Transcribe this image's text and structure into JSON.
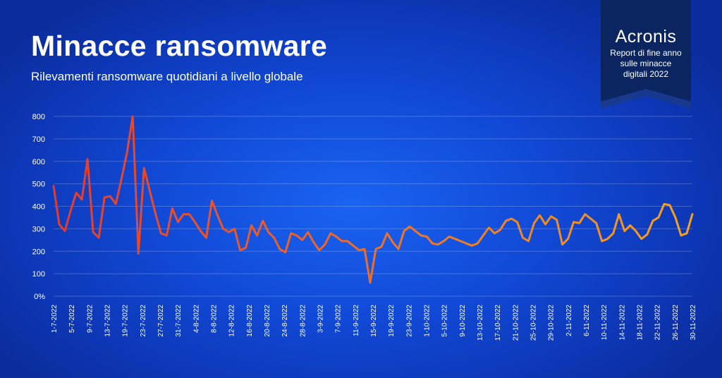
{
  "header": {
    "title": "Minacce ransomware",
    "subtitle": "Rilevamenti ransomware quotidiani a livello globale"
  },
  "badge": {
    "brand": "Acronis",
    "report_line1": "Report di fine anno",
    "report_line2": "sulle minacce",
    "report_line3": "digitali 2022"
  },
  "colors": {
    "background": "#1149d6",
    "line_start": "#e83a2a",
    "line_end": "#f7a21d",
    "badge": "#0b2560"
  },
  "chart_data": {
    "type": "line",
    "title": "Minacce ransomware",
    "subtitle": "Rilevamenti ransomware quotidiani a livello globale",
    "xlabel": "",
    "ylabel": "",
    "ylim": [
      0,
      800
    ],
    "yticks": [
      "0%",
      "100",
      "200",
      "300",
      "400",
      "500",
      "600",
      "700",
      "800"
    ],
    "grid": true,
    "legend": "none",
    "xtick_labels": [
      "1-7-2022",
      "5-7-2022",
      "9-7-2022",
      "13-7-2022",
      "19-7-2022",
      "23-7-2022",
      "27-7-2022",
      "31-7-2022",
      "4-8-2022",
      "8-8-2022",
      "12-8-2022",
      "16-8-2022",
      "20-8-2022",
      "24-8-2022",
      "28-8-2022",
      "3-9-2022",
      "7-9-2022",
      "11-9-2022",
      "15-9-2022",
      "19-9-2022",
      "23-9-2022",
      "1-10-2022",
      "5-10-2022",
      "9-10-2022",
      "13-10-2022",
      "17-10-2022",
      "21-10-2022",
      "25-10-2022",
      "29-10-2022",
      "2-11-2022",
      "6-11-2022",
      "10-11-2022",
      "14-11-2022",
      "18-11-2022",
      "22-11-2022",
      "26-11-2022",
      "30-11-2022"
    ],
    "series": [
      {
        "values": [
          490,
          320,
          290,
          380,
          460,
          430,
          610,
          285,
          260,
          440,
          445,
          410,
          520,
          640,
          800,
          190,
          570,
          470,
          370,
          280,
          270,
          390,
          330,
          365,
          365,
          330,
          290,
          260,
          425,
          360,
          300,
          285,
          300,
          205,
          215,
          315,
          270,
          335,
          285,
          260,
          210,
          195,
          280,
          270,
          250,
          285,
          240,
          205,
          230,
          280,
          265,
          245,
          245,
          225,
          205,
          210,
          60,
          210,
          220,
          280,
          240,
          210,
          290,
          310,
          290,
          270,
          265,
          235,
          230,
          245,
          265,
          255,
          245,
          235,
          225,
          235,
          270,
          305,
          280,
          295,
          335,
          345,
          330,
          260,
          245,
          325,
          360,
          320,
          355,
          340,
          230,
          255,
          330,
          325,
          365,
          345,
          325,
          245,
          255,
          280,
          365,
          290,
          315,
          290,
          255,
          275,
          335,
          350,
          410,
          405,
          350,
          270,
          280,
          365
        ]
      }
    ]
  }
}
